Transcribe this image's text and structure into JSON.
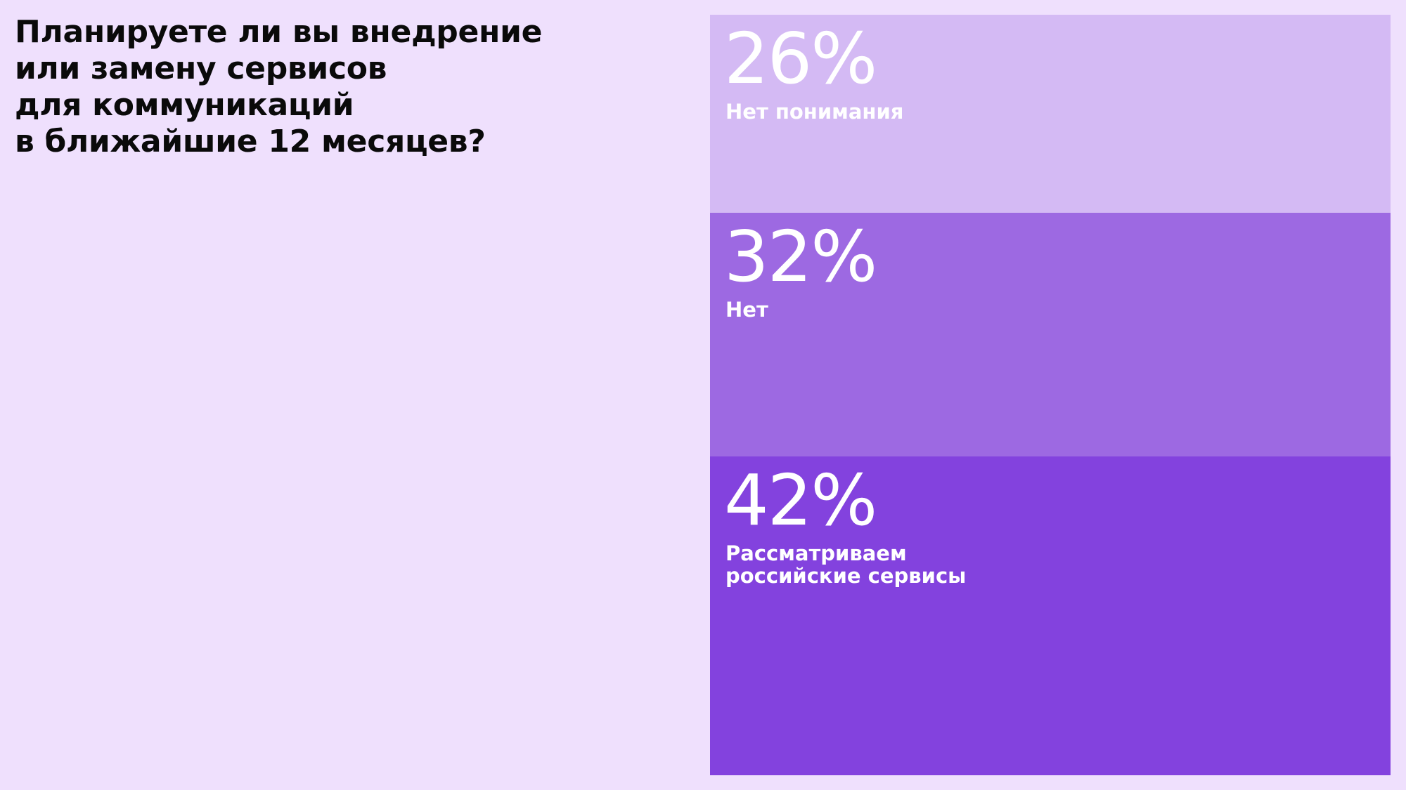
{
  "title_lines": [
    "Планируете ли вы внедрение",
    "или замену сервисов",
    "для коммуникаций",
    "в ближайшие 12 месяцев?"
  ],
  "chart_data": {
    "type": "bar",
    "stacked": true,
    "orientation": "vertical",
    "title": "Планируете ли вы внедрение или замену сервисов для коммуникаций в ближайшие 12 месяцев?",
    "unit": "%",
    "categories": [
      "Нет понимания",
      "Нет",
      "Рассматриваем российские сервисы"
    ],
    "values": [
      26,
      32,
      42
    ],
    "segments": [
      {
        "value": 26,
        "value_label": "26%",
        "label": "Нет понимания",
        "color": "#d4baf4"
      },
      {
        "value": 32,
        "value_label": "32%",
        "label": "Нет",
        "color": "#9d69e2"
      },
      {
        "value": 42,
        "value_label": "42%",
        "label": "Рассматриваем\nроссийские сервисы",
        "color": "#8342de"
      }
    ]
  },
  "colors": {
    "background": "#efe0fd",
    "text": "#0a0a0a",
    "segment_text": "#ffffff"
  }
}
